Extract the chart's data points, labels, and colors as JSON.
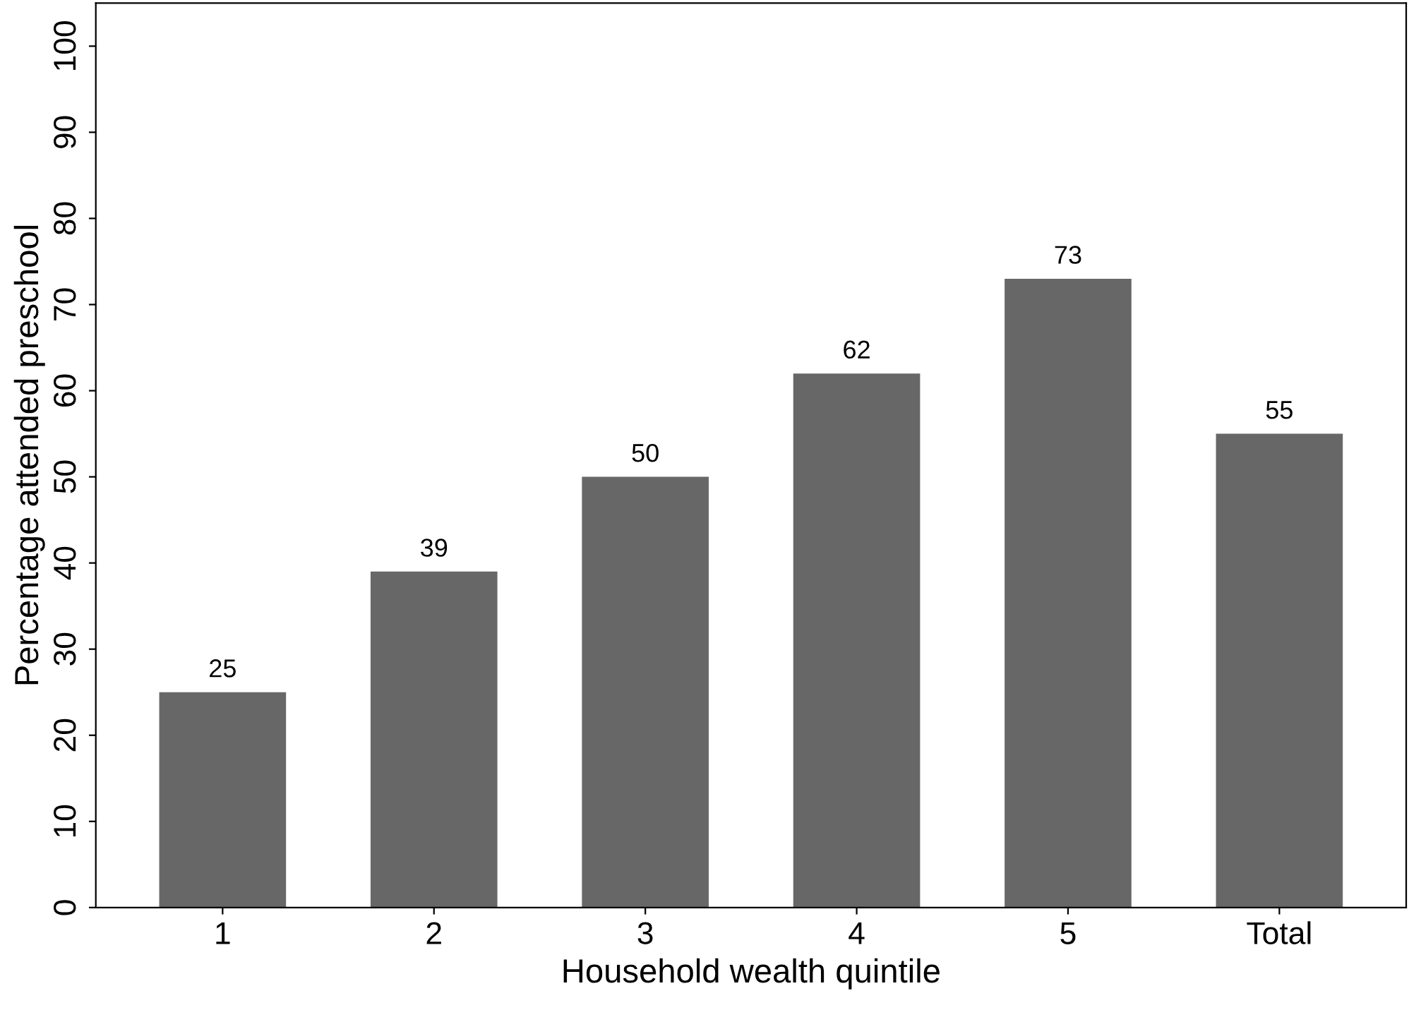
{
  "chart_data": {
    "type": "bar",
    "xlabel": "Household wealth quintile",
    "ylabel": "Percentage attended preschool",
    "categories": [
      "1",
      "2",
      "3",
      "4",
      "5",
      "Total"
    ],
    "values": [
      25,
      39,
      50,
      62,
      73,
      55
    ],
    "color": "#676767",
    "ylim": [
      0,
      105
    ],
    "yticks": [
      0,
      10,
      20,
      30,
      40,
      50,
      60,
      70,
      80,
      90,
      100
    ],
    "grid": false,
    "data_labels": true
  }
}
